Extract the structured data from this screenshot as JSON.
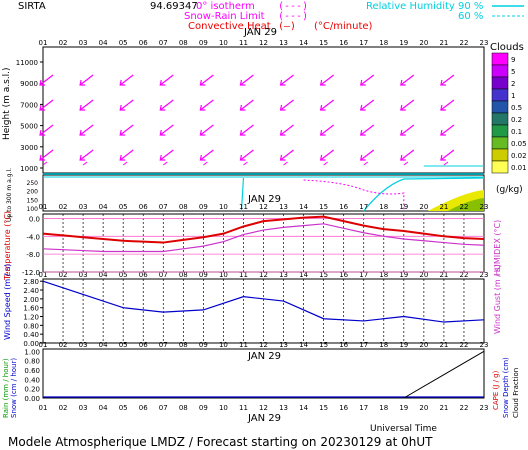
{
  "header": {
    "station": "SIRTA",
    "coords": "94.69347",
    "legend_isotherm": "0° isotherm",
    "legend_snowrain": "Snow-Rain Limit",
    "legend_convective": "Convective Heat",
    "legend_convective_unit": "(°C/minute)",
    "legend_rh": "Relative Humidity",
    "legend_rh_90": "90 %",
    "legend_rh_60": "60 %"
  },
  "colors": {
    "wind_arrow": "#ff00ff",
    "temperature": "#dd0000",
    "humidex": "#cc33cc",
    "wind_speed": "#0000cc",
    "rh": "#00d0e0",
    "precip": "#000000"
  },
  "date_label": "JAN 29",
  "hour_ticks": [
    "01",
    "02",
    "03",
    "04",
    "05",
    "06",
    "07",
    "08",
    "09",
    "10",
    "11",
    "12",
    "13",
    "14",
    "15",
    "16",
    "17",
    "18",
    "19",
    "20",
    "21",
    "22",
    "23"
  ],
  "panel1": {
    "ylabel": "Height (m a.s.l.)",
    "yticks": [
      "11000",
      "9000",
      "7000",
      "5000",
      "3000",
      "1000"
    ],
    "lower_label": "Up to 300 m a.g.l.",
    "lower_ticks": [
      "250",
      "200",
      "150",
      "100"
    ],
    "colorbar_title": "Clouds",
    "colorbar_ticks": [
      "9",
      "5",
      "2",
      "1",
      "0.5",
      "0.2",
      "0.1",
      "0.05",
      "0.02",
      "0.01"
    ],
    "colorbar_unit": "(g/kg)"
  },
  "panel2": {
    "ylabel_left": "Temperature (°C)",
    "ylabel_right": "HUMIDEX (°C)",
    "yticks": [
      "0.0",
      "-4.0",
      "-8.0",
      "-12.0"
    ]
  },
  "panel3": {
    "ylabel_left": "Wind Speed (m / s)",
    "ylabel_right": "Wind Gust (m / s)",
    "yticks": [
      "2.80",
      "2.40",
      "2.00",
      "1.60",
      "1.20",
      "0.80",
      "0.40",
      "0.00"
    ]
  },
  "panel4": {
    "ylabel_left": "Rain (mm / hour)",
    "ylabel_left2": "Snow (cm / hour)",
    "ylabel_right": "CAPE (J / g)",
    "ylabel_right2": "Snow Depth (cm)",
    "ylabel_right3": "Cloud Fraction",
    "yticks": [
      "1.00",
      "0.80",
      "0.60",
      "0.40",
      "0.20",
      "0.00"
    ],
    "xlabel": "Universal Time"
  },
  "footer": "Modele Atmospherique LMDZ / Forecast starting on 20230129 at 0hUT",
  "chart_data": [
    {
      "type": "line",
      "panel": "temperature",
      "x": [
        "01",
        "02",
        "03",
        "04",
        "05",
        "06",
        "07",
        "08",
        "09",
        "10",
        "11",
        "12",
        "13",
        "14",
        "15",
        "16",
        "17",
        "18",
        "19",
        "20",
        "21",
        "22",
        "23"
      ],
      "series": [
        {
          "name": "Temperature",
          "values": [
            -3.4,
            -3.8,
            -4.2,
            -4.6,
            -5.0,
            -5.2,
            -5.4,
            -4.8,
            -4.2,
            -3.4,
            -1.8,
            -0.6,
            -0.2,
            0.2,
            0.4,
            -0.6,
            -1.6,
            -2.4,
            -2.8,
            -3.4,
            -4.0,
            -4.4,
            -4.6
          ]
        },
        {
          "name": "Humidex",
          "values": [
            -6.8,
            -7.0,
            -7.2,
            -7.4,
            -7.4,
            -7.4,
            -7.4,
            -6.8,
            -6.2,
            -5.2,
            -3.6,
            -2.6,
            -2.0,
            -1.6,
            -1.2,
            -2.2,
            -3.2,
            -4.0,
            -4.6,
            -5.0,
            -5.4,
            -5.8,
            -6.0
          ]
        }
      ],
      "ylim": [
        -12,
        1
      ]
    },
    {
      "type": "line",
      "panel": "wind",
      "x": [
        "01",
        "03",
        "05",
        "07",
        "09",
        "11",
        "13",
        "15",
        "17",
        "19",
        "21",
        "23"
      ],
      "series": [
        {
          "name": "Wind Speed",
          "values": [
            2.8,
            2.2,
            1.6,
            1.4,
            1.5,
            2.1,
            1.9,
            1.1,
            1.0,
            1.2,
            0.95,
            1.05
          ]
        }
      ],
      "ylim": [
        0,
        2.9
      ]
    },
    {
      "type": "line",
      "panel": "precip",
      "x": [
        "19",
        "23"
      ],
      "series": [
        {
          "name": "Rain",
          "values": [
            0.0,
            1.0
          ]
        }
      ],
      "ylim": [
        0,
        1.05
      ]
    }
  ]
}
